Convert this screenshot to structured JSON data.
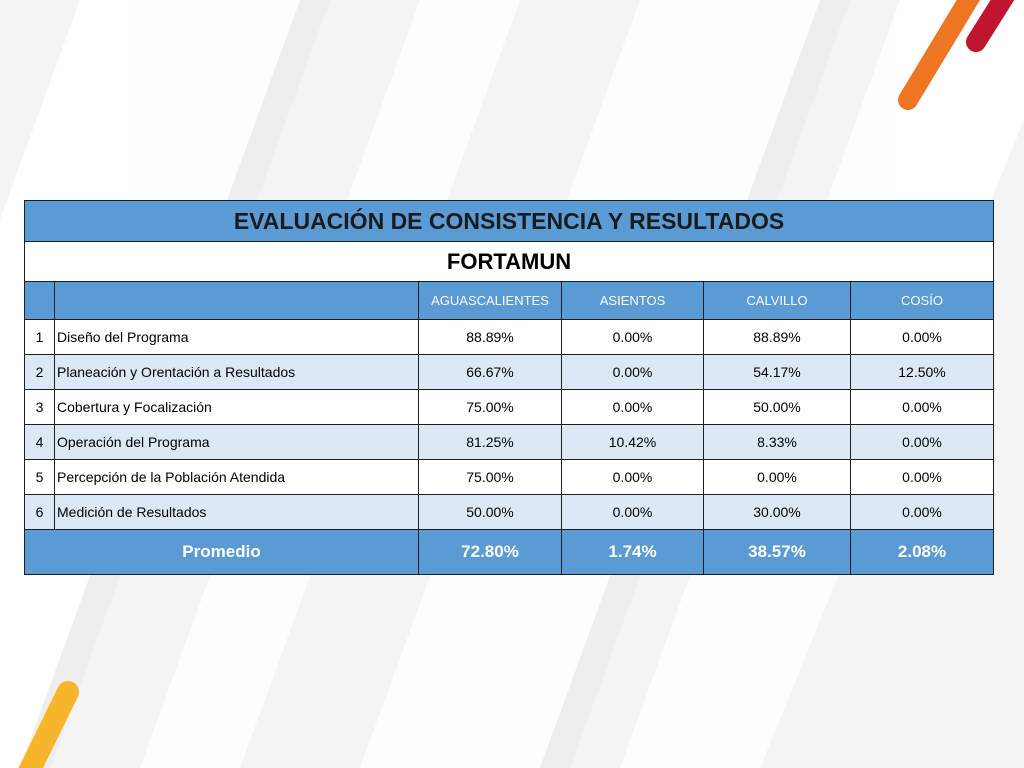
{
  "colors": {
    "header_blue": "#5b9bd5",
    "row_alt": "#dde8f6",
    "accent_orange": "#ee7623",
    "accent_red": "#c0152f",
    "accent_yellow": "#f7b52c"
  },
  "table": {
    "title": "EVALUACIÓN DE CONSISTENCIA Y RESULTADOS",
    "subtitle": "FORTAMUN",
    "columns": [
      "AGUASCALIENTES",
      "ASIENTOS",
      "CALVILLO",
      "COSÍO"
    ],
    "rows": [
      {
        "n": "1",
        "criterion": "Diseño del Programa",
        "values": [
          "88.89%",
          "0.00%",
          "88.89%",
          "0.00%"
        ]
      },
      {
        "n": "2",
        "criterion": "Planeación y Orentación a Resultados",
        "values": [
          "66.67%",
          "0.00%",
          "54.17%",
          "12.50%"
        ]
      },
      {
        "n": "3",
        "criterion": "Cobertura y Focalización",
        "values": [
          "75.00%",
          "0.00%",
          "50.00%",
          "0.00%"
        ]
      },
      {
        "n": "4",
        "criterion": "Operación del Programa",
        "values": [
          "81.25%",
          "10.42%",
          "8.33%",
          "0.00%"
        ]
      },
      {
        "n": "5",
        "criterion": "Percepción de la Población Atendida",
        "values": [
          "75.00%",
          "0.00%",
          "0.00%",
          "0.00%"
        ]
      },
      {
        "n": "6",
        "criterion": "Medición de Resultados",
        "values": [
          "50.00%",
          "0.00%",
          "30.00%",
          "0.00%"
        ]
      }
    ],
    "average": {
      "label": "Promedio",
      "values": [
        "72.80%",
        "1.74%",
        "38.57%",
        "2.08%"
      ]
    }
  }
}
